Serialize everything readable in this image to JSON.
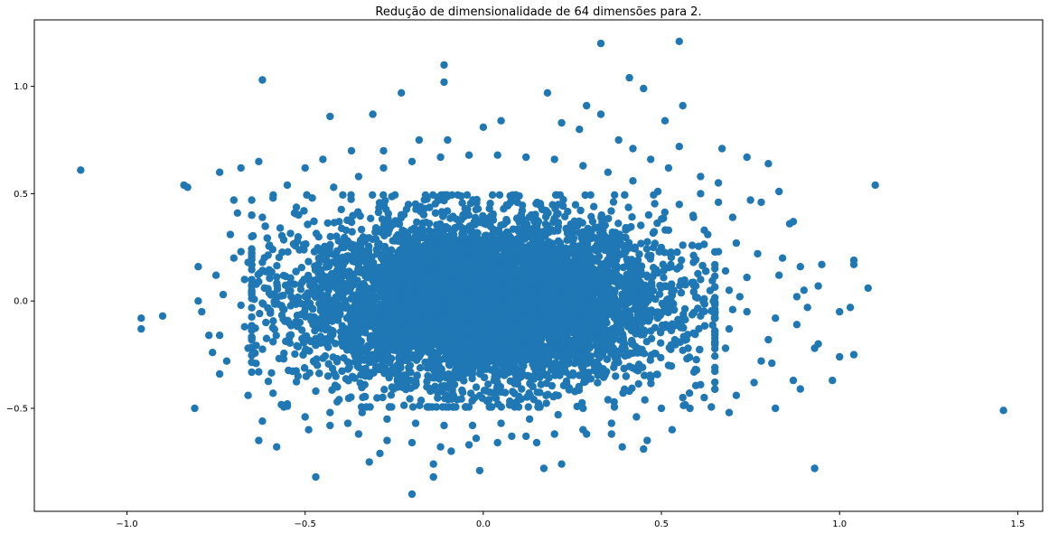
{
  "chart_data": {
    "type": "scatter",
    "title": "Redução de dimensionalidade de 64 dimensões para 2.",
    "xlabel": "",
    "ylabel": "",
    "xlim": [
      -1.26,
      1.57
    ],
    "ylim": [
      -0.98,
      1.31
    ],
    "xticks": [
      -1.0,
      -0.5,
      0.0,
      0.5,
      1.0,
      1.5
    ],
    "xtick_labels": [
      "−1.0",
      "−0.5",
      "0.0",
      "0.5",
      "1.0",
      "1.5"
    ],
    "yticks": [
      -0.5,
      0.0,
      0.5,
      1.0
    ],
    "ytick_labels": [
      "−0.5",
      "0.0",
      "0.5",
      "1.0"
    ],
    "grid": false,
    "marker_color": "#1f77b4",
    "series": [
      {
        "dense_core": {
          "center": [
            0.0,
            0.0
          ],
          "std": [
            0.25,
            0.19
          ],
          "approx_count": 8000
        },
        "points": [
          [
            -1.13,
            0.61
          ],
          [
            -0.84,
            0.54
          ],
          [
            -0.83,
            0.53
          ],
          [
            -0.62,
            1.03
          ],
          [
            -0.23,
            0.97
          ],
          [
            -0.11,
            1.1
          ],
          [
            -0.11,
            1.02
          ],
          [
            0.33,
            1.2
          ],
          [
            0.55,
            1.21
          ],
          [
            0.41,
            1.04
          ],
          [
            0.45,
            0.99
          ],
          [
            0.56,
            0.91
          ],
          [
            0.33,
            0.87
          ],
          [
            0.18,
            0.97
          ],
          [
            0.29,
            0.91
          ],
          [
            -0.43,
            0.86
          ],
          [
            -0.31,
            0.87
          ],
          [
            0.51,
            0.84
          ],
          [
            0.8,
            0.64
          ],
          [
            1.1,
            0.54
          ],
          [
            0.83,
            0.51
          ],
          [
            -0.74,
            0.6
          ],
          [
            -0.68,
            0.62
          ],
          [
            -0.63,
            0.65
          ],
          [
            -0.96,
            -0.08
          ],
          [
            -0.96,
            -0.13
          ],
          [
            -0.9,
            -0.07
          ],
          [
            -0.81,
            -0.5
          ],
          [
            -0.62,
            -0.56
          ],
          [
            -0.63,
            -0.65
          ],
          [
            -0.58,
            -0.68
          ],
          [
            -0.47,
            -0.82
          ],
          [
            -0.32,
            -0.75
          ],
          [
            -0.29,
            -0.71
          ],
          [
            -0.2,
            -0.9
          ],
          [
            -0.14,
            -0.76
          ],
          [
            -0.14,
            -0.82
          ],
          [
            -0.01,
            -0.79
          ],
          [
            0.17,
            -0.78
          ],
          [
            0.22,
            -0.76
          ],
          [
            0.39,
            -0.68
          ],
          [
            0.45,
            -0.69
          ],
          [
            0.46,
            -0.65
          ],
          [
            0.69,
            -0.52
          ],
          [
            0.82,
            -0.5
          ],
          [
            0.87,
            -0.37
          ],
          [
            0.89,
            -0.41
          ],
          [
            0.93,
            -0.78
          ],
          [
            1.46,
            -0.51
          ],
          [
            0.98,
            -0.37
          ],
          [
            0.94,
            -0.2
          ],
          [
            1.04,
            -0.25
          ],
          [
            1.0,
            -0.26
          ],
          [
            0.93,
            -0.22
          ],
          [
            1.08,
            0.06
          ],
          [
            1.04,
            0.19
          ],
          [
            1.04,
            0.17
          ],
          [
            0.95,
            0.17
          ],
          [
            0.89,
            0.16
          ],
          [
            0.94,
            0.07
          ],
          [
            0.88,
            0.02
          ],
          [
            0.9,
            0.05
          ],
          [
            0.91,
            -0.03
          ],
          [
            0.88,
            -0.11
          ],
          [
            1.03,
            -0.03
          ],
          [
            1.0,
            -0.05
          ],
          [
            0.86,
            0.36
          ],
          [
            0.87,
            0.37
          ],
          [
            0.84,
            0.2
          ],
          [
            0.83,
            0.12
          ],
          [
            0.78,
            0.46
          ],
          [
            0.75,
            0.47
          ],
          [
            0.74,
            0.67
          ],
          [
            0.67,
            0.71
          ],
          [
            0.55,
            0.72
          ],
          [
            0.52,
            0.62
          ],
          [
            0.61,
            0.58
          ],
          [
            0.66,
            0.55
          ],
          [
            -0.79,
            -0.05
          ],
          [
            -0.8,
            0.0
          ],
          [
            -0.8,
            0.16
          ],
          [
            -0.77,
            -0.16
          ],
          [
            -0.74,
            -0.34
          ],
          [
            -0.72,
            -0.28
          ],
          [
            -0.76,
            -0.24
          ],
          [
            -0.74,
            -0.16
          ],
          [
            -0.73,
            0.03
          ],
          [
            -0.75,
            0.12
          ],
          [
            -0.7,
            0.2
          ],
          [
            -0.68,
            0.23
          ],
          [
            -0.71,
            0.31
          ],
          [
            -0.69,
            0.41
          ],
          [
            -0.7,
            0.47
          ],
          [
            -0.65,
            0.47
          ],
          [
            -0.66,
            -0.44
          ],
          [
            -0.55,
            -0.48
          ],
          [
            -0.49,
            -0.6
          ],
          [
            -0.43,
            -0.52
          ],
          [
            -0.38,
            -0.57
          ],
          [
            -0.09,
            -0.7
          ],
          [
            -0.02,
            -0.64
          ],
          [
            0.08,
            -0.63
          ],
          [
            0.15,
            -0.66
          ],
          [
            0.29,
            -0.62
          ],
          [
            0.36,
            -0.62
          ],
          [
            0.53,
            -0.6
          ],
          [
            0.58,
            -0.5
          ],
          [
            0.62,
            -0.45
          ],
          [
            0.71,
            -0.44
          ],
          [
            0.76,
            -0.38
          ],
          [
            0.78,
            -0.28
          ],
          [
            0.81,
            -0.29
          ],
          [
            0.8,
            -0.18
          ],
          [
            0.82,
            -0.08
          ],
          [
            0.74,
            -0.05
          ],
          [
            0.72,
            0.02
          ],
          [
            0.74,
            0.11
          ],
          [
            0.77,
            0.22
          ],
          [
            0.71,
            0.27
          ],
          [
            0.7,
            0.39
          ],
          [
            0.66,
            0.46
          ],
          [
            0.61,
            0.5
          ],
          [
            0.47,
            0.66
          ],
          [
            0.42,
            0.71
          ],
          [
            0.38,
            0.75
          ],
          [
            0.27,
            0.8
          ],
          [
            0.22,
            0.83
          ],
          [
            0.05,
            0.84
          ],
          [
            0.0,
            0.81
          ],
          [
            -0.1,
            0.75
          ],
          [
            -0.18,
            0.75
          ],
          [
            -0.28,
            0.7
          ],
          [
            -0.37,
            0.7
          ],
          [
            -0.45,
            0.66
          ],
          [
            -0.5,
            0.62
          ],
          [
            -0.55,
            0.54
          ],
          [
            -0.59,
            0.48
          ],
          [
            -0.62,
            0.39
          ],
          [
            -0.65,
            0.3
          ],
          [
            -0.66,
            0.18
          ],
          [
            -0.67,
            0.1
          ],
          [
            -0.68,
            -0.02
          ],
          [
            -0.67,
            -0.12
          ],
          [
            -0.66,
            -0.22
          ],
          [
            -0.63,
            -0.33
          ],
          [
            -0.59,
            -0.43
          ],
          [
            -0.55,
            -0.49
          ],
          [
            -0.5,
            -0.54
          ],
          [
            -0.43,
            -0.58
          ],
          [
            -0.35,
            -0.62
          ],
          [
            -0.27,
            -0.65
          ],
          [
            -0.2,
            -0.66
          ],
          [
            -0.12,
            -0.68
          ],
          [
            -0.04,
            -0.67
          ],
          [
            0.04,
            -0.66
          ],
          [
            0.12,
            -0.63
          ],
          [
            0.2,
            -0.62
          ],
          [
            0.28,
            -0.6
          ],
          [
            0.36,
            -0.57
          ],
          [
            0.43,
            -0.54
          ],
          [
            0.5,
            -0.5
          ],
          [
            0.56,
            -0.45
          ],
          [
            0.61,
            -0.39
          ],
          [
            0.65,
            -0.31
          ],
          [
            0.68,
            -0.22
          ],
          [
            0.69,
            -0.13
          ],
          [
            0.7,
            -0.04
          ],
          [
            0.69,
            0.05
          ],
          [
            0.68,
            0.14
          ],
          [
            0.66,
            0.23
          ],
          [
            0.63,
            0.31
          ],
          [
            0.59,
            0.39
          ],
          [
            0.55,
            0.45
          ],
          [
            0.49,
            0.51
          ],
          [
            0.42,
            0.56
          ],
          [
            0.35,
            0.6
          ],
          [
            0.28,
            0.63
          ],
          [
            0.2,
            0.66
          ],
          [
            0.12,
            0.67
          ],
          [
            0.04,
            0.68
          ],
          [
            -0.04,
            0.68
          ],
          [
            -0.12,
            0.67
          ],
          [
            -0.2,
            0.65
          ],
          [
            -0.28,
            0.62
          ],
          [
            -0.35,
            0.58
          ],
          [
            -0.42,
            0.53
          ],
          [
            -0.48,
            0.48
          ],
          [
            -0.53,
            0.41
          ],
          [
            -0.57,
            0.34
          ],
          [
            -0.6,
            0.26
          ],
          [
            -0.62,
            0.18
          ],
          [
            -0.63,
            0.09
          ],
          [
            -0.62,
            -0.01
          ],
          [
            -0.61,
            -0.1
          ],
          [
            -0.59,
            -0.19
          ],
          [
            -0.56,
            -0.27
          ],
          [
            -0.52,
            -0.35
          ],
          [
            -0.47,
            -0.42
          ],
          [
            -0.41,
            -0.47
          ],
          [
            -0.34,
            -0.52
          ],
          [
            -0.27,
            -0.55
          ],
          [
            -0.19,
            -0.57
          ],
          [
            -0.11,
            -0.58
          ],
          [
            -0.03,
            -0.58
          ],
          [
            0.05,
            -0.57
          ],
          [
            0.13,
            -0.55
          ],
          [
            0.21,
            -0.53
          ],
          [
            0.28,
            -0.5
          ],
          [
            0.35,
            -0.46
          ],
          [
            0.41,
            -0.42
          ],
          [
            0.47,
            -0.36
          ],
          [
            0.52,
            -0.3
          ],
          [
            0.56,
            -0.23
          ],
          [
            0.59,
            -0.15
          ],
          [
            0.61,
            -0.07
          ],
          [
            0.62,
            0.01
          ],
          [
            0.61,
            0.1
          ],
          [
            0.59,
            0.18
          ],
          [
            0.56,
            0.26
          ],
          [
            0.52,
            0.33
          ]
        ]
      }
    ]
  }
}
